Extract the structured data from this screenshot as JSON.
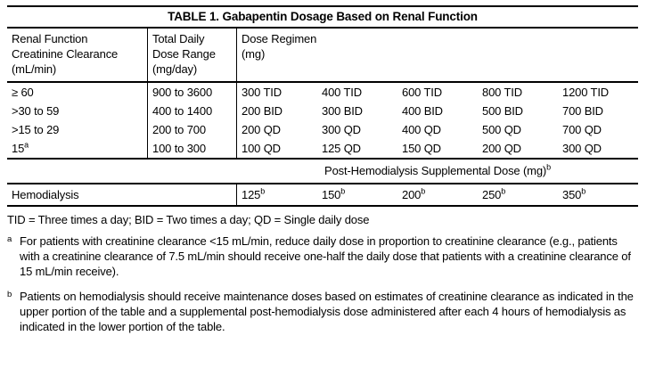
{
  "title": "TABLE 1. Gabapentin Dosage Based on Renal Function",
  "table": {
    "header": {
      "renal": "Renal Function\nCreatinine Clearance\n(mL/min)",
      "dose_range": "Total Daily\nDose Range\n(mg/day)",
      "regimen": "Dose Regimen\n(mg)"
    },
    "rows": [
      {
        "renal": "≥ 60",
        "range": "900 to 3600",
        "regimens": [
          "300 TID",
          "400 TID",
          "600 TID",
          "800 TID",
          "1200 TID"
        ]
      },
      {
        "renal": ">30 to 59",
        "range": "400 to 1400",
        "regimens": [
          "200 BID",
          "300 BID",
          "400 BID",
          "500 BID",
          "700 BID"
        ]
      },
      {
        "renal": ">15 to 29",
        "range": "200 to 700",
        "regimens": [
          "200 QD",
          "300 QD",
          "400 QD",
          "500 QD",
          "700 QD"
        ]
      },
      {
        "renal": "15",
        "renal_sup": "a",
        "range": "100 to 300",
        "regimens": [
          "100 QD",
          "125 QD",
          "150 QD",
          "200 QD",
          "300 QD"
        ]
      }
    ],
    "posthemo": {
      "label": "Post-Hemodialysis Supplemental Dose (mg)",
      "sup": "b"
    },
    "hemo": {
      "label": "Hemodialysis",
      "values": [
        "125",
        "150",
        "200",
        "250",
        "350"
      ],
      "sup": "b"
    }
  },
  "footnotes": {
    "abbrev": "TID = Three times a day; BID = Two times a day; QD = Single daily dose",
    "a_marker": "a",
    "a_text": "For patients with creatinine clearance <15 mL/min, reduce daily dose in proportion to creatinine clearance (e.g., patients with a creatinine clearance of 7.5 mL/min should receive one-half the daily dose that patients with a creatinine clearance of 15 mL/min receive).",
    "b_marker": "b",
    "b_text": "Patients on hemodialysis should receive maintenance doses based on estimates of creatinine clearance as indicated in the upper portion of the table and a supplemental post-hemodialysis dose administered after each 4 hours of hemodialysis as indicated in the lower portion of the table."
  }
}
